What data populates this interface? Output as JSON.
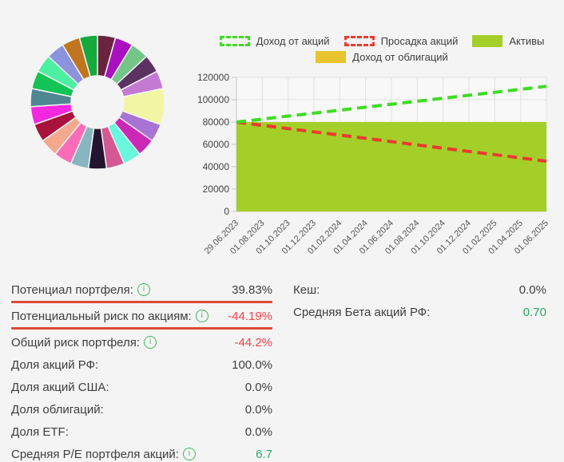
{
  "colors": {
    "page_bg": "#f4f4f4",
    "plot_bg": "#f8f8f8",
    "grid": "#e2e2e2",
    "axis": "#c6c6c6",
    "tick_text": "#555555",
    "ylabel_text": "#444444",
    "label_text": "#3e3e3e",
    "value_red": "#f8404a",
    "value_green": "#27a960",
    "underline_red": "#dc4a35",
    "info_green": "#3fb662"
  },
  "chart_data": [
    {
      "type": "pie",
      "donut": true,
      "title": "",
      "note": "portfolio allocation donut, no labels visible",
      "segments": [
        {
          "color": "#6b2440",
          "weight": 1
        },
        {
          "color": "#a810c0",
          "weight": 1
        },
        {
          "color": "#74c688",
          "weight": 1
        },
        {
          "color": "#5c3263",
          "weight": 1
        },
        {
          "color": "#c47ad2",
          "weight": 1
        },
        {
          "color": "#f1f6a3",
          "weight": 2
        },
        {
          "color": "#a873d2",
          "weight": 1
        },
        {
          "color": "#cc28b8",
          "weight": 1
        },
        {
          "color": "#68f6de",
          "weight": 1
        },
        {
          "color": "#d45894",
          "weight": 1
        },
        {
          "color": "#251430",
          "weight": 1
        },
        {
          "color": "#88b6c0",
          "weight": 1
        },
        {
          "color": "#fb6cb8",
          "weight": 1
        },
        {
          "color": "#f4a98f",
          "weight": 1
        },
        {
          "color": "#a8123c",
          "weight": 1
        },
        {
          "color": "#f428e0",
          "weight": 1
        },
        {
          "color": "#4e8791",
          "weight": 1
        },
        {
          "color": "#12c455",
          "weight": 1
        },
        {
          "color": "#4df0a0",
          "weight": 1
        },
        {
          "color": "#8b93dd",
          "weight": 1
        },
        {
          "color": "#c0761f",
          "weight": 1
        },
        {
          "color": "#16a93c",
          "weight": 1
        }
      ]
    },
    {
      "type": "area",
      "title": "",
      "grid": true,
      "legend_position": "top",
      "ylim": [
        0,
        120000
      ],
      "yticks": [
        0,
        20000,
        40000,
        60000,
        80000,
        100000,
        120000
      ],
      "x": [
        "29.06.2023",
        "01.08.2023",
        "01.10.2023",
        "01.12.2023",
        "01.02.2024",
        "01.04.2024",
        "01.06.2024",
        "01.08.2024",
        "01.10.2024",
        "01.12.2024",
        "01.02.2025",
        "01.04.2025",
        "01.06.2025"
      ],
      "legend": [
        {
          "label": "Доход от акций",
          "marker": "dashed",
          "color": "#3edc21"
        },
        {
          "label": "Просадка акций",
          "marker": "dashed",
          "color": "#ea3b2f"
        },
        {
          "label": "Активы",
          "marker": "solid",
          "color": "#a4cf28"
        },
        {
          "label": "Доход от облигаций",
          "marker": "solid",
          "color": "#e8c52e"
        }
      ],
      "series": [
        {
          "name": "Активы",
          "style": "area",
          "color": "#a4cf28",
          "values": [
            80000,
            80000,
            80000,
            80000,
            80000,
            80000,
            80000,
            80000,
            80000,
            80000,
            80000,
            80000,
            80000
          ]
        },
        {
          "name": "Просадка акций",
          "style": "dashed-line",
          "color": "#ea3b2f",
          "values": [
            80000,
            77083,
            74167,
            71250,
            68333,
            65417,
            62500,
            59583,
            56667,
            53750,
            50833,
            47917,
            45000
          ]
        },
        {
          "name": "Доход от акций",
          "style": "dashed-line",
          "color": "#3edc21",
          "values": [
            80000,
            82667,
            85333,
            88000,
            90667,
            93333,
            96000,
            98667,
            101333,
            104000,
            106667,
            109333,
            112000
          ]
        },
        {
          "name": "Доход от облигаций",
          "style": "area",
          "color": "#e8c52e",
          "values": []
        }
      ]
    }
  ],
  "stats": {
    "left": [
      {
        "label": "Потенциал портфеля:",
        "info": true,
        "value": "39.83%",
        "value_color": "dark",
        "underline": true
      },
      {
        "label": "Потенциальный риск по акциям:",
        "info": true,
        "value": "-44.19%",
        "value_color": "red",
        "underline": true
      },
      {
        "label": "Общий риск портфеля:",
        "info": true,
        "value": "-44.2%",
        "value_color": "red",
        "underline": false
      },
      {
        "label": "Доля акций РФ:",
        "info": false,
        "value": "100.0%",
        "value_color": "dark",
        "underline": false
      },
      {
        "label": "Доля акций США:",
        "info": false,
        "value": "0.0%",
        "value_color": "dark",
        "underline": false
      },
      {
        "label": "Доля облигаций:",
        "info": false,
        "value": "0.0%",
        "value_color": "dark",
        "underline": false
      },
      {
        "label": "Доля ETF:",
        "info": false,
        "value": "0.0%",
        "value_color": "dark",
        "underline": false
      },
      {
        "label": "Средняя P/E портфеля акций:",
        "info": true,
        "value": "6.7",
        "value_color": "green",
        "underline": false
      }
    ],
    "right": [
      {
        "label": "Кеш:",
        "info": false,
        "value": "0.0%",
        "value_color": "dark",
        "underline": false
      },
      {
        "label": "Средняя Бета акций РФ:",
        "info": false,
        "value": "0.70",
        "value_color": "green",
        "underline": false
      }
    ]
  }
}
